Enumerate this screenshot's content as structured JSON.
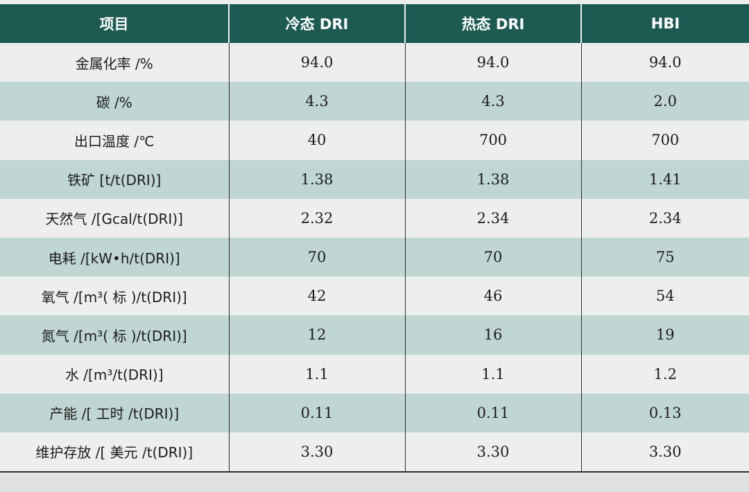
{
  "table": {
    "headers": [
      "项目",
      "冷态 DRI",
      "热态 DRI",
      "HBI"
    ],
    "rows": [
      {
        "label": "金属化率 /%",
        "values": [
          "94.0",
          "94.0",
          "94.0"
        ]
      },
      {
        "label": "碳 /%",
        "values": [
          "4.3",
          "4.3",
          "2.0"
        ]
      },
      {
        "label": "出口温度 /℃",
        "values": [
          "40",
          "700",
          "700"
        ]
      },
      {
        "label": "铁矿 [t/t(DRI)]",
        "values": [
          "1.38",
          "1.38",
          "1.41"
        ]
      },
      {
        "label": "天然气 /[Gcal/t(DRI)]",
        "values": [
          "2.32",
          "2.34",
          "2.34"
        ]
      },
      {
        "label": "电耗 /[kW•h/t(DRI)]",
        "values": [
          "70",
          "70",
          "75"
        ]
      },
      {
        "label": "氧气 /[m³( 标 )/t(DRI)]",
        "values": [
          "42",
          "46",
          "54"
        ]
      },
      {
        "label": "氮气 /[m³( 标 )/t(DRI)]",
        "values": [
          "12",
          "16",
          "19"
        ]
      },
      {
        "label": "水 /[m³/t(DRI)]",
        "values": [
          "1.1",
          "1.1",
          "1.2"
        ]
      },
      {
        "label": "产能 /[ 工时 /t(DRI)]",
        "values": [
          "0.11",
          "0.11",
          "0.13"
        ]
      },
      {
        "label": "维护存放 /[ 美元 /t(DRI)]",
        "values": [
          "3.30",
          "3.30",
          "3.30"
        ]
      }
    ]
  },
  "colors": {
    "header_bg": "#1c5a52",
    "header_text": "#ffffff",
    "row_light": "#edefee",
    "row_teal": "#bfd6d3"
  }
}
